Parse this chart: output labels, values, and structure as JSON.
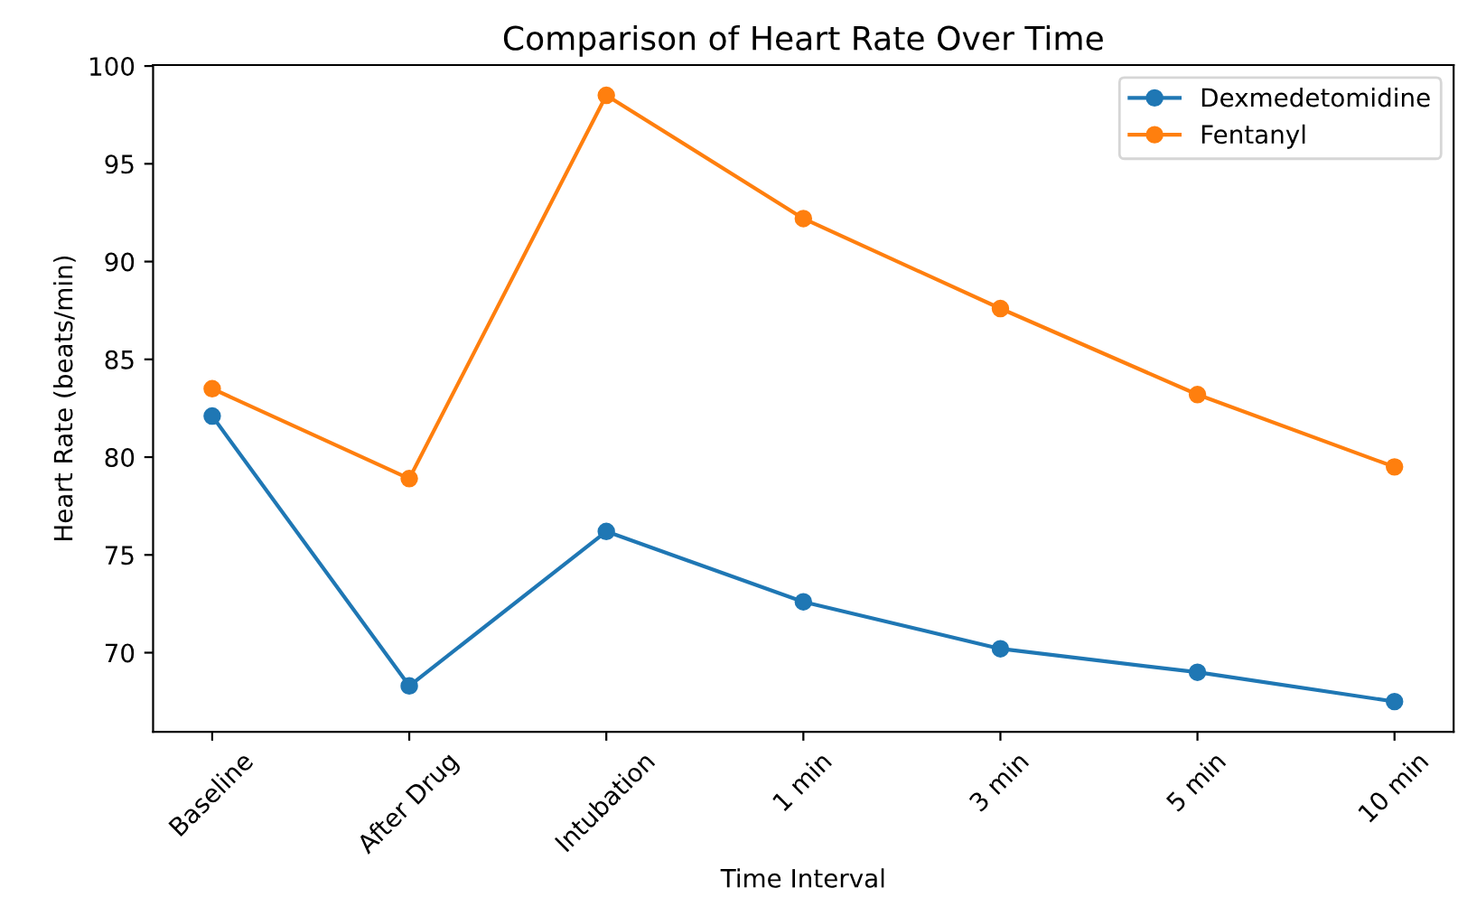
{
  "chart_data": {
    "type": "line",
    "title": "Comparison of Heart Rate Over Time",
    "xlabel": "Time Interval",
    "ylabel": "Heart Rate (beats/min)",
    "categories": [
      "Baseline",
      "After Drug",
      "Intubation",
      "1 min",
      "3 min",
      "5 min",
      "10 min"
    ],
    "series": [
      {
        "name": "Dexmedetomidine",
        "color": "#1f77b4",
        "values": [
          82.1,
          68.3,
          76.2,
          72.6,
          70.2,
          69.0,
          67.5
        ]
      },
      {
        "name": "Fentanyl",
        "color": "#ff7f0e",
        "values": [
          83.5,
          78.9,
          98.5,
          92.2,
          87.6,
          83.2,
          79.5
        ]
      }
    ],
    "ylim": [
      65.95,
      100.05
    ],
    "yticks": [
      70,
      75,
      80,
      85,
      90,
      95,
      100
    ],
    "grid": false,
    "legend": "top right",
    "marker": "circle",
    "line_style": "solid"
  }
}
